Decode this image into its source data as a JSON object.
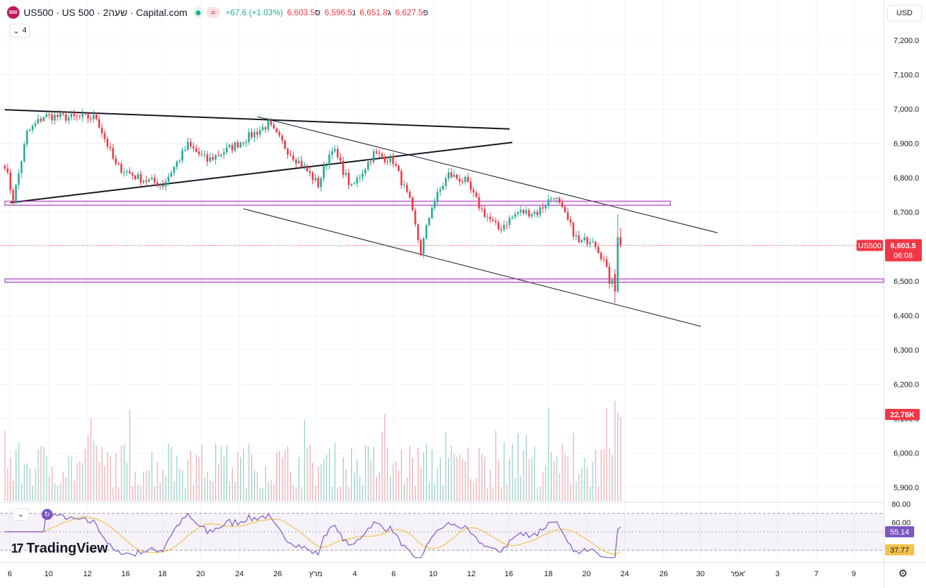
{
  "header": {
    "logo_text": "500",
    "title": "US500 · US 500 · שעה2 · Capital.com",
    "change": "+67.6 (+1.03%)",
    "ohlc": [
      {
        "label": "ס",
        "value": "6,603.5"
      },
      {
        "label": "נ",
        "value": "6,596.5"
      },
      {
        "label": "ג",
        "value": "6,651.8"
      },
      {
        "label": "פ",
        "value": "6,627.5"
      }
    ],
    "wave_icon": "≈",
    "legend_count": "4"
  },
  "currency": "USD",
  "branding": "TradingView",
  "colors": {
    "up": "#22ab94",
    "down": "#f23645",
    "rsi": "#7e57c2",
    "rsi_ma": "#f5c24c",
    "zone": "#9c27b0",
    "last_price": "#f23645"
  },
  "chart_data": {
    "type": "candlestick",
    "symbol": "US500",
    "interval": "2H",
    "price_axis": {
      "range": [
        5860,
        7300
      ],
      "ticks": [
        7200,
        7100,
        7000,
        6900,
        6800,
        6700,
        6600,
        6500,
        6400,
        6300,
        6200,
        6100,
        6000,
        5900
      ]
    },
    "price_tick_labels": [
      "7,200.0",
      "7,100.0",
      "7,000.0",
      "6,900.0",
      "6,800.0",
      "6,700.0",
      "6,600.0",
      "6,500.0",
      "6,400.0",
      "6,300.0",
      "6,200.0",
      "6,100.0",
      "6,000.0",
      "5,900.0"
    ],
    "x_ticks": [
      "6",
      "10",
      "12",
      "16",
      "18",
      "20",
      "24",
      "26",
      "מרץ",
      "4",
      "6",
      "10",
      "12",
      "16",
      "18",
      "20",
      "24",
      "26",
      "30",
      "אפר'",
      "3",
      "7",
      "9"
    ],
    "anchors": [
      {
        "i": 0,
        "p": 6840
      },
      {
        "i": 3,
        "p": 6735
      },
      {
        "i": 8,
        "p": 6930
      },
      {
        "i": 14,
        "p": 6980
      },
      {
        "i": 25,
        "p": 6975
      },
      {
        "i": 33,
        "p": 6975
      },
      {
        "i": 40,
        "p": 6835
      },
      {
        "i": 48,
        "p": 6800
      },
      {
        "i": 57,
        "p": 6780
      },
      {
        "i": 66,
        "p": 6895
      },
      {
        "i": 73,
        "p": 6850
      },
      {
        "i": 82,
        "p": 6890
      },
      {
        "i": 95,
        "p": 6955
      },
      {
        "i": 102,
        "p": 6880
      },
      {
        "i": 108,
        "p": 6830
      },
      {
        "i": 113,
        "p": 6780
      },
      {
        "i": 118,
        "p": 6890
      },
      {
        "i": 125,
        "p": 6770
      },
      {
        "i": 133,
        "p": 6870
      },
      {
        "i": 140,
        "p": 6850
      },
      {
        "i": 146,
        "p": 6730
      },
      {
        "i": 150,
        "p": 6585
      },
      {
        "i": 154,
        "p": 6720
      },
      {
        "i": 160,
        "p": 6810
      },
      {
        "i": 166,
        "p": 6790
      },
      {
        "i": 172,
        "p": 6705
      },
      {
        "i": 178,
        "p": 6650
      },
      {
        "i": 185,
        "p": 6700
      },
      {
        "i": 192,
        "p": 6700
      },
      {
        "i": 198,
        "p": 6750
      },
      {
        "i": 202,
        "p": 6690
      },
      {
        "i": 207,
        "p": 6610
      },
      {
        "i": 212,
        "p": 6625
      },
      {
        "i": 216,
        "p": 6560
      },
      {
        "i": 218,
        "p": 6500
      },
      {
        "i": 221,
        "p": 6535
      },
      {
        "i": 222,
        "p": 6628
      }
    ],
    "last_candle": {
      "open": 6627.5,
      "high": 6651.8,
      "low": 6596.5,
      "close": 6603.5
    },
    "last_price_label": "6,603.5",
    "countdown": "06:08",
    "symbol_tag": "US500",
    "volume_label": "22.76K",
    "drawings": [
      {
        "type": "trendline",
        "from": [
          0,
          6998
        ],
        "to": [
          182,
          6942
        ],
        "width": 2
      },
      {
        "type": "trendline",
        "from": [
          2,
          6728
        ],
        "to": [
          183,
          6903
        ],
        "width": 2
      },
      {
        "type": "trendline",
        "from": [
          91,
          6978
        ],
        "to": [
          257,
          6640
        ],
        "width": 1
      },
      {
        "type": "trendline",
        "from": [
          86,
          6710
        ],
        "to": [
          251,
          6368
        ],
        "width": 1
      },
      {
        "type": "zone",
        "from": [
          0,
          6732
        ],
        "to": [
          240,
          6720
        ]
      },
      {
        "type": "zone",
        "from": [
          0,
          6506
        ],
        "to": [
          320,
          6496
        ]
      }
    ],
    "rsi": {
      "range": [
        20,
        80
      ],
      "upper": 70,
      "lower": 30,
      "labels": [
        "80.00",
        "60.00"
      ],
      "value": "55.14",
      "ma_value": "37.77"
    }
  }
}
